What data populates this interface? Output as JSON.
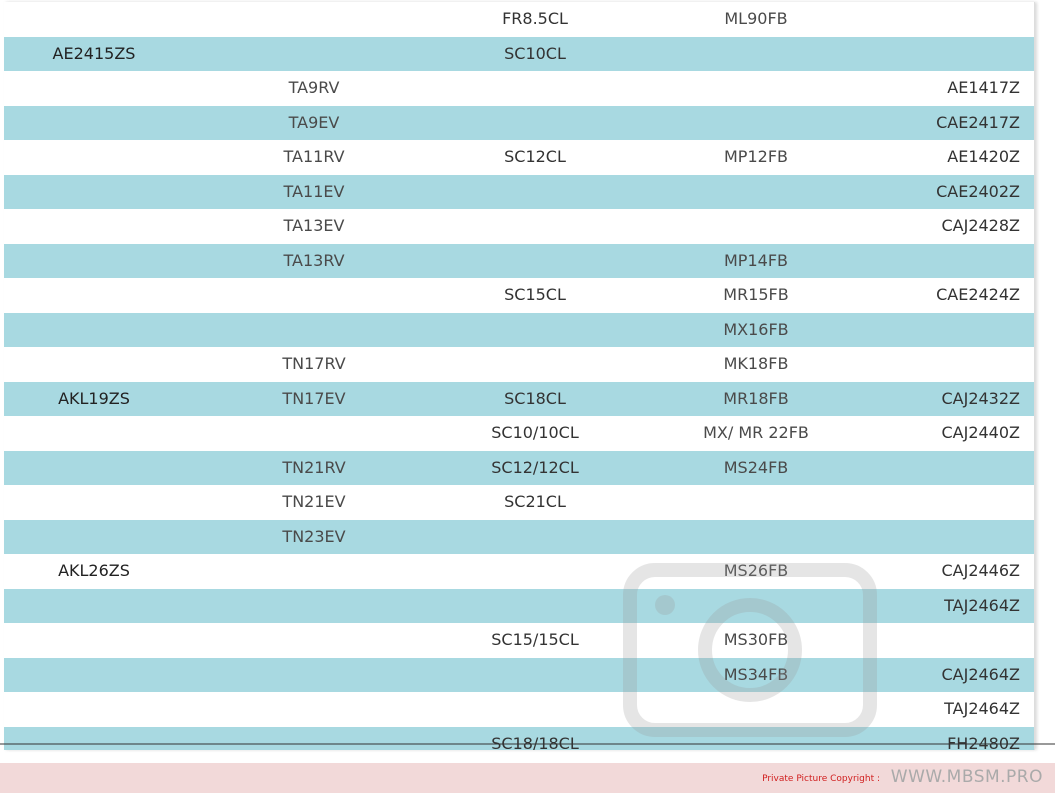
{
  "rows": [
    [
      "",
      "",
      "FR8.5CL",
      "ML90FB",
      ""
    ],
    [
      "AE2415ZS",
      "",
      "SC10CL",
      "",
      ""
    ],
    [
      "",
      "TA9RV",
      "",
      "",
      "AE1417Z"
    ],
    [
      "",
      "TA9EV",
      "",
      "",
      "CAE2417Z"
    ],
    [
      "",
      "TA11RV",
      "SC12CL",
      "MP12FB",
      "AE1420Z"
    ],
    [
      "",
      "TA11EV",
      "",
      "",
      "CAE2402Z"
    ],
    [
      "",
      "TA13EV",
      "",
      "",
      "CAJ2428Z"
    ],
    [
      "",
      "TA13RV",
      "",
      "MP14FB",
      ""
    ],
    [
      "",
      "",
      "SC15CL",
      "MR15FB",
      "CAE2424Z"
    ],
    [
      "",
      "",
      "",
      "MX16FB",
      ""
    ],
    [
      "",
      "TN17RV",
      "",
      "MK18FB",
      ""
    ],
    [
      "AKL19ZS",
      "TN17EV",
      "SC18CL",
      "MR18FB",
      "CAJ2432Z"
    ],
    [
      "",
      "",
      "SC10/10CL",
      "MX/ MR 22FB",
      "CAJ2440Z"
    ],
    [
      "",
      "TN21RV",
      "SC12/12CL",
      "MS24FB",
      ""
    ],
    [
      "",
      "TN21EV",
      "SC21CL",
      "",
      ""
    ],
    [
      "",
      "TN23EV",
      "",
      "",
      ""
    ],
    [
      "AKL26ZS",
      "",
      "",
      "MS26FB",
      "CAJ2446Z"
    ],
    [
      "",
      "",
      "",
      "",
      "TAJ2464Z"
    ],
    [
      "",
      "",
      "SC15/15CL",
      "MS30FB",
      ""
    ],
    [
      "",
      "",
      "",
      "MS34FB",
      "CAJ2464Z"
    ],
    [
      "",
      "",
      "",
      "",
      "TAJ2464Z"
    ],
    [
      "",
      "",
      "SC18/18CL",
      "",
      "FH2480Z"
    ]
  ],
  "colors": {
    "stripe": "#a8d9e1",
    "footer": "#f2d9d9",
    "copyright": "#d12020"
  },
  "footer": {
    "copyright": "Private Picture Copyright :",
    "site": "WWW.MBSM.PRO"
  },
  "watermark": {
    "text": "WWW.MBSM.PRO",
    "icon": "camera-icon"
  }
}
